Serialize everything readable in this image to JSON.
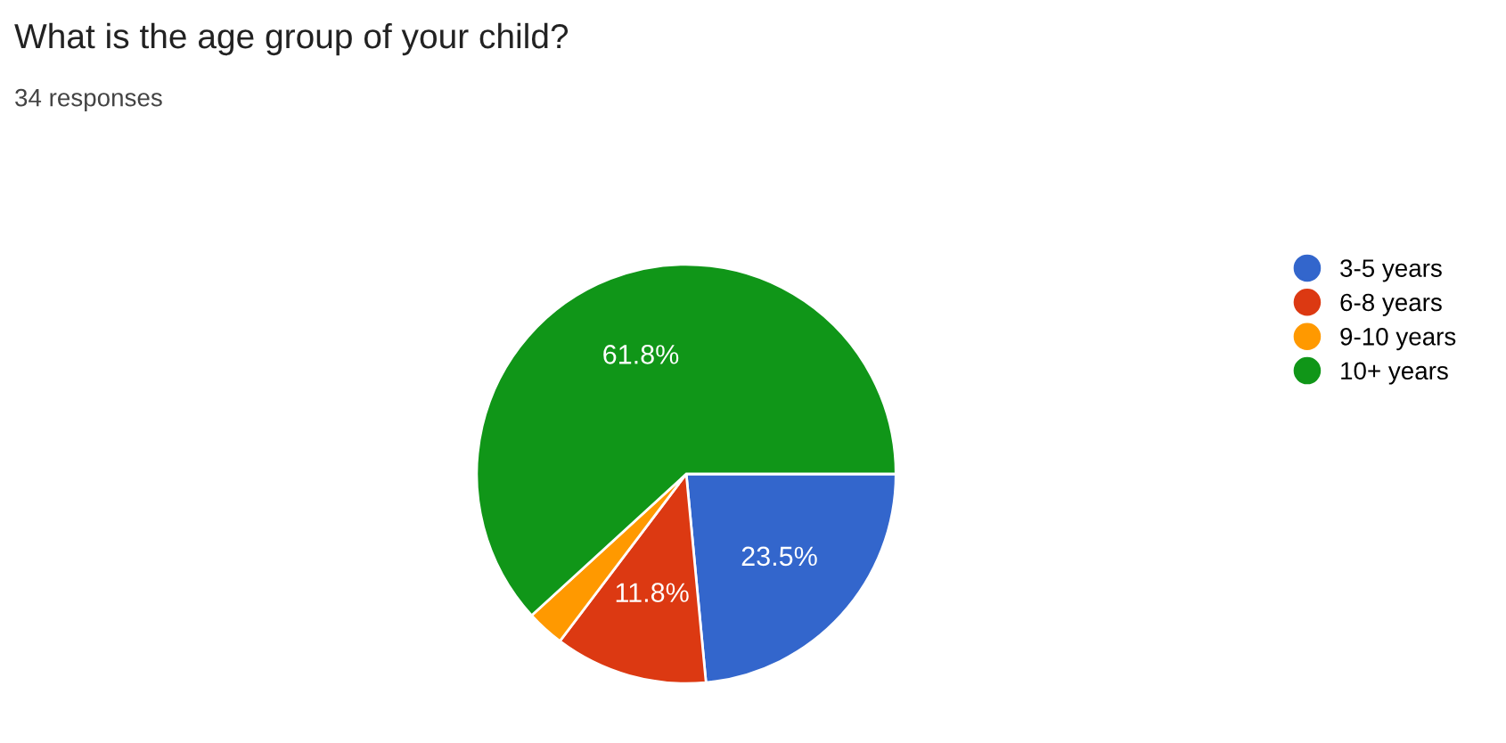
{
  "chart_data": {
    "type": "pie",
    "title": "What is the age group of your child?",
    "subtitle": "34 responses",
    "categories": [
      "3-5 years",
      "6-8 years",
      "9-10 years",
      "10+ years"
    ],
    "values": [
      23.5,
      11.8,
      2.9,
      61.8
    ],
    "colors": [
      "#3366cc",
      "#dc3912",
      "#ff9900",
      "#109618"
    ],
    "value_labels": [
      "23.5%",
      "11.8%",
      null,
      "61.8%"
    ],
    "legend": "right"
  }
}
